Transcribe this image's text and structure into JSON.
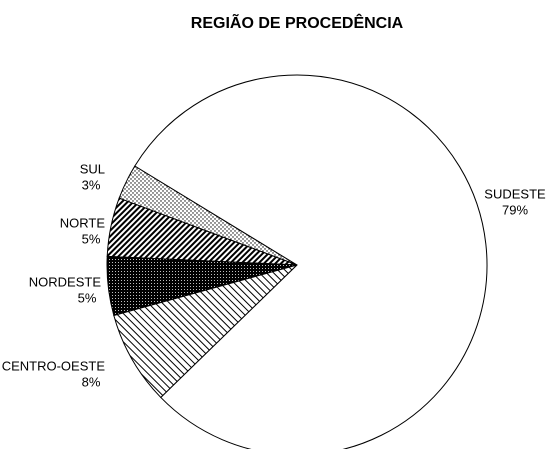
{
  "chart_data": {
    "type": "pie",
    "title": "REGIÃO DE PROCEDÊNCIA",
    "categories": [
      "SUL",
      "NORTE",
      "NORDESTE",
      "CENTRO-OESTE",
      "SUDESTE"
    ],
    "values": [
      3,
      5,
      5,
      8,
      79
    ],
    "value_labels": [
      "3%",
      "5%",
      "5%",
      "8%",
      "79%"
    ]
  }
}
